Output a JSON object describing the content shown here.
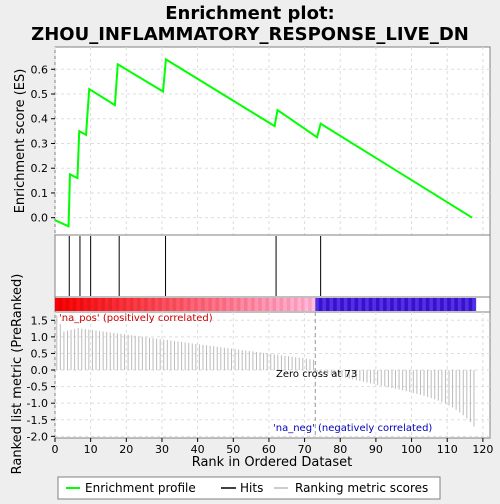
{
  "chart_data": {
    "type": "line",
    "title": "Enrichment plot:",
    "subtitle": "ZHOU_INFLAMMATORY_RESPONSE_LIVE_DN",
    "xlabel": "Rank in Ordered Dataset",
    "es_ylabel": "Enrichment score (ES)",
    "metric_ylabel": "Ranked list metric (PreRanked)",
    "xlim": [
      0,
      122
    ],
    "es_ylim": [
      -0.07,
      0.69
    ],
    "metric_ylim": [
      -2.05,
      1.75
    ],
    "x_ticks": [
      0,
      10,
      20,
      30,
      40,
      50,
      60,
      70,
      80,
      90,
      100,
      110,
      120
    ],
    "es_ticks": [
      0.0,
      0.1,
      0.2,
      0.3,
      0.4,
      0.5,
      0.6
    ],
    "es_tick_labels": [
      "0.0",
      "0.1",
      "0.2",
      "0.3",
      "0.4",
      "0.5",
      "0.6"
    ],
    "metric_ticks": [
      -2.0,
      -1.5,
      -1.0,
      -0.5,
      0.0,
      0.5,
      1.0,
      1.5
    ],
    "metric_tick_labels": [
      "-2.0",
      "-1.5",
      "-1.0",
      "-0.5",
      "0.0",
      "0.5",
      "1.0",
      "1.5"
    ],
    "es_points": [
      [
        0,
        -0.01
      ],
      [
        3.8,
        -0.035
      ],
      [
        4.2,
        0.175
      ],
      [
        6.3,
        0.16
      ],
      [
        6.8,
        0.35
      ],
      [
        8.7,
        0.335
      ],
      [
        9.6,
        0.52
      ],
      [
        16.8,
        0.455
      ],
      [
        17.6,
        0.62
      ],
      [
        30.3,
        0.51
      ],
      [
        31.1,
        0.64
      ],
      [
        61.6,
        0.37
      ],
      [
        62.4,
        0.435
      ],
      [
        73.5,
        0.325
      ],
      [
        74.5,
        0.38
      ],
      [
        117,
        0.0
      ]
    ],
    "hits": [
      4,
      7,
      10,
      18,
      31,
      62,
      74.5
    ],
    "zero_cross": 73,
    "zero_cross_label": "Zero cross at 73",
    "pos_label": "'na_pos' (positively correlated)",
    "neg_label": "'na_neg' (negatively correlated)",
    "n_genes": 118,
    "legend": [
      "Enrichment profile",
      "Hits",
      "Ranking metric scores"
    ],
    "colors": {
      "es_line": "#00ff00",
      "hit": "#000000",
      "metric": "#bbbbbb",
      "pos_text": "#cc0000",
      "neg_text": "#0000bb",
      "grid": "#dddddd",
      "heat_pos": "#ff0000",
      "heat_mid": "#ffc0e0",
      "heat_neg": "#2020dd"
    }
  }
}
